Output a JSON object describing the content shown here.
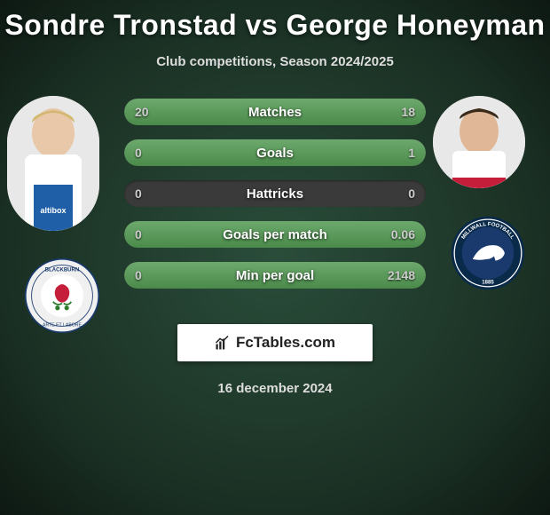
{
  "title": "Sondre Tronstad vs George Honeyman",
  "subtitle": "Club competitions, Season 2024/2025",
  "date": "16 december 2024",
  "brand": "FcTables.com",
  "players": {
    "left": {
      "name": "Sondre Tronstad"
    },
    "right": {
      "name": "George Honeyman"
    }
  },
  "stats": [
    {
      "label": "Matches",
      "left_val": "20",
      "right_val": "18",
      "left_pct": 53,
      "right_pct": 47
    },
    {
      "label": "Goals",
      "left_val": "0",
      "right_val": "1",
      "left_pct": 14,
      "right_pct": 86
    },
    {
      "label": "Hattricks",
      "left_val": "0",
      "right_val": "0",
      "left_pct": 0,
      "right_pct": 0
    },
    {
      "label": "Goals per match",
      "left_val": "0",
      "right_val": "0.06",
      "left_pct": 14,
      "right_pct": 86
    },
    {
      "label": "Min per goal",
      "left_val": "0",
      "right_val": "2148",
      "left_pct": 14,
      "right_pct": 86
    }
  ],
  "colors": {
    "bar_bg": "#3a3a3a",
    "bar_fill_top": "#6da96d",
    "bar_fill_bot": "#4a8a4a",
    "page_bg_center": "#2a4d3a",
    "page_bg_edge": "#0d1812",
    "text": "#ffffff",
    "subtext": "#dddddd"
  }
}
